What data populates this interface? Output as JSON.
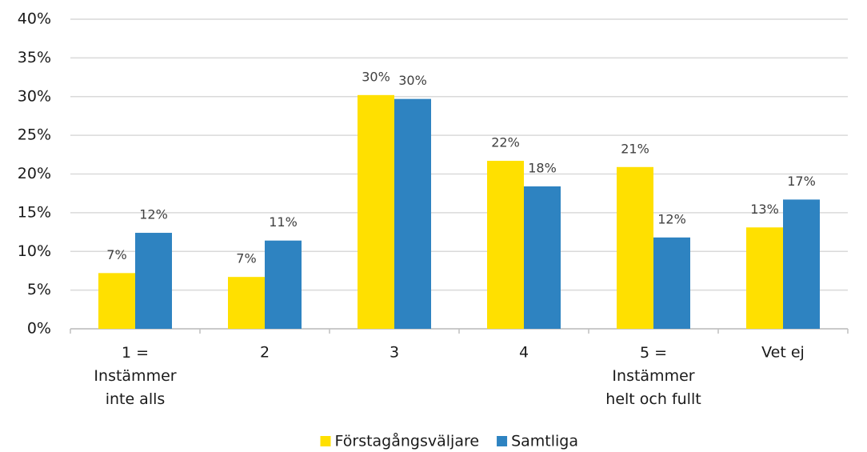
{
  "chart_data": {
    "type": "bar",
    "categories": [
      "1 =\nInstämmer\ninte alls",
      "2",
      "3",
      "4",
      "5 =\nInstämmer\nhelt och fullt",
      "Vet ej"
    ],
    "series": [
      {
        "name": "Förstagångsväljare",
        "color": "#ffe000",
        "values": [
          7.2,
          6.7,
          30.2,
          21.7,
          20.9,
          13.1
        ],
        "value_labels": [
          "7%",
          "7%",
          "30%",
          "22%",
          "21%",
          "13%"
        ]
      },
      {
        "name": "Samtliga",
        "color": "#2e83c1",
        "values": [
          12.4,
          11.4,
          29.7,
          18.4,
          11.8,
          16.7
        ],
        "value_labels": [
          "12%",
          "11%",
          "30%",
          "18%",
          "12%",
          "17%"
        ]
      }
    ],
    "ylim": [
      0,
      40
    ],
    "yticks": [
      {
        "value": 0,
        "label": "0%"
      },
      {
        "value": 5,
        "label": "5%"
      },
      {
        "value": 10,
        "label": "10%"
      },
      {
        "value": 15,
        "label": "15%"
      },
      {
        "value": 20,
        "label": "20%"
      },
      {
        "value": 25,
        "label": "25%"
      },
      {
        "value": 30,
        "label": "30%"
      },
      {
        "value": 35,
        "label": "35%"
      },
      {
        "value": 40,
        "label": "40%"
      }
    ],
    "grid": true,
    "legend": "bottom"
  }
}
